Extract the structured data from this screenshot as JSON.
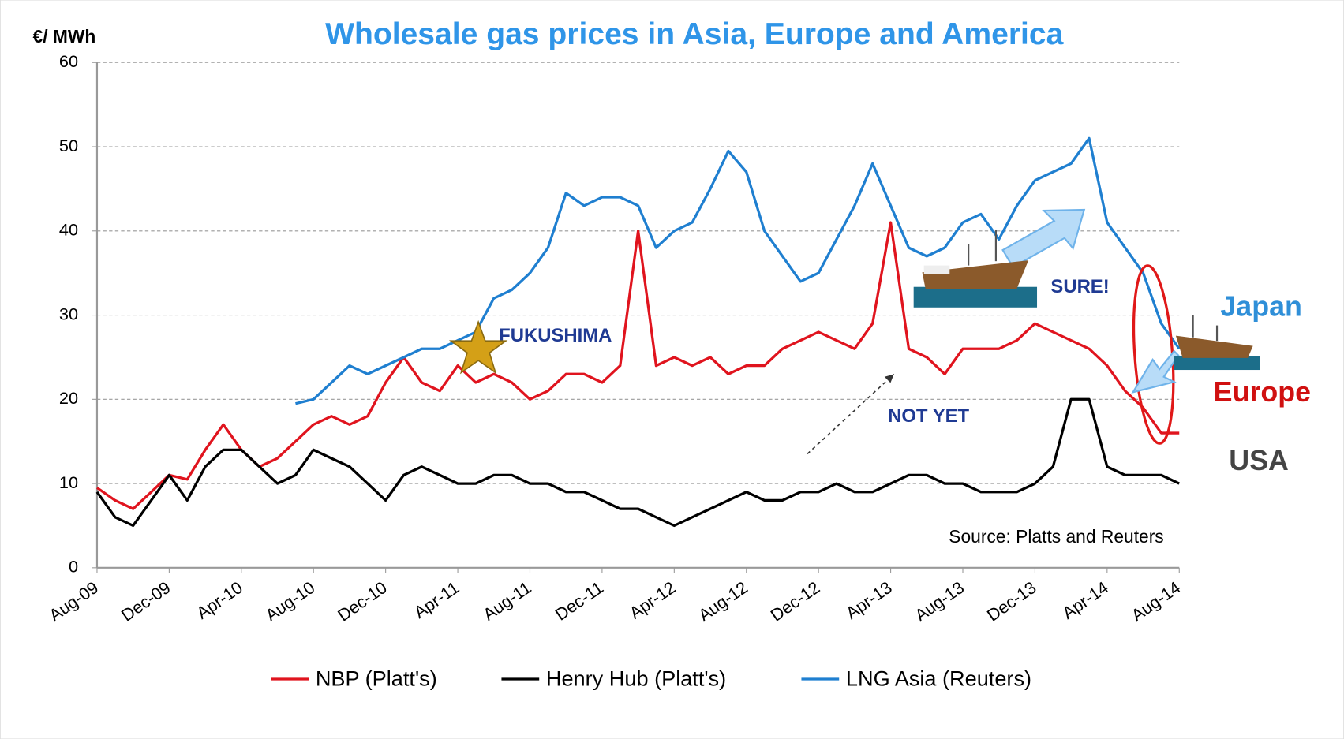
{
  "chart_data": {
    "type": "line",
    "title": "Wholesale gas prices in Asia, Europe and America",
    "ylabel": "€/ MWh",
    "source": "Source: Platts and  Reuters",
    "annotations": [
      "FUKUSHIMA",
      "SURE!",
      "NOT YET",
      "Japan",
      "Europe",
      "USA"
    ],
    "categories": [
      "Aug-09",
      null,
      null,
      null,
      "Dec-09",
      null,
      null,
      null,
      "Apr-10",
      null,
      null,
      null,
      "Aug-10",
      null,
      null,
      null,
      "Dec-10",
      null,
      null,
      null,
      "Apr-11",
      null,
      null,
      null,
      "Aug-11",
      null,
      null,
      null,
      "Dec-11",
      null,
      null,
      null,
      "Apr-12",
      null,
      null,
      null,
      "Aug-12",
      null,
      null,
      null,
      "Dec-12",
      null,
      null,
      null,
      "Apr-13",
      null,
      null,
      null,
      "Aug-13",
      null,
      null,
      null,
      "Dec-13",
      null,
      null,
      null,
      "Apr-14",
      null,
      null,
      null,
      "Aug-14"
    ],
    "series": [
      {
        "name": "NBP (Platt's)",
        "color": "#e0141e",
        "values": [
          9.5,
          8,
          7,
          9,
          11,
          10.5,
          14,
          17,
          14,
          12,
          13,
          15,
          17,
          18,
          17,
          18,
          22,
          25,
          22,
          21,
          24,
          22,
          23,
          22,
          20,
          21,
          23,
          23,
          22,
          24,
          40,
          24,
          25,
          24,
          25,
          23,
          24,
          24,
          26,
          27,
          28,
          27,
          26,
          29,
          41,
          26,
          25,
          23,
          26,
          26,
          26,
          27,
          29,
          28,
          27,
          26,
          24,
          21,
          19,
          16,
          16
        ]
      },
      {
        "name": "Henry Hub  (Platt's)",
        "color": "#000000",
        "values": [
          9,
          6,
          5,
          8,
          11,
          8,
          12,
          14,
          14,
          12,
          10,
          11,
          14,
          13,
          12,
          10,
          8,
          11,
          12,
          11,
          10,
          10,
          11,
          11,
          10,
          10,
          9,
          9,
          8,
          7,
          7,
          6,
          5,
          6,
          7,
          8,
          9,
          8,
          8,
          9,
          9,
          10,
          9,
          9,
          10,
          11,
          11,
          10,
          10,
          9,
          9,
          9,
          10,
          12,
          20,
          20,
          12,
          11,
          11,
          11,
          10
        ]
      },
      {
        "name": "LNG Asia (Reuters)",
        "color": "#1f7fd0",
        "values": [
          null,
          null,
          null,
          null,
          null,
          null,
          null,
          null,
          null,
          null,
          null,
          19.5,
          20,
          22,
          24,
          23,
          24,
          25,
          26,
          26,
          27,
          28,
          32,
          33,
          35,
          38,
          44.5,
          43,
          44,
          44,
          43,
          38,
          40,
          41,
          45,
          49.5,
          47,
          40,
          37,
          34,
          35,
          39,
          43,
          48,
          43,
          38,
          37,
          38,
          41,
          42,
          39,
          43,
          46,
          47,
          48,
          51,
          41,
          38,
          35,
          29,
          26
        ]
      }
    ],
    "ylim": [
      0,
      60
    ],
    "yticks": [
      0,
      10,
      20,
      30,
      40,
      50,
      60
    ],
    "grid": true
  }
}
